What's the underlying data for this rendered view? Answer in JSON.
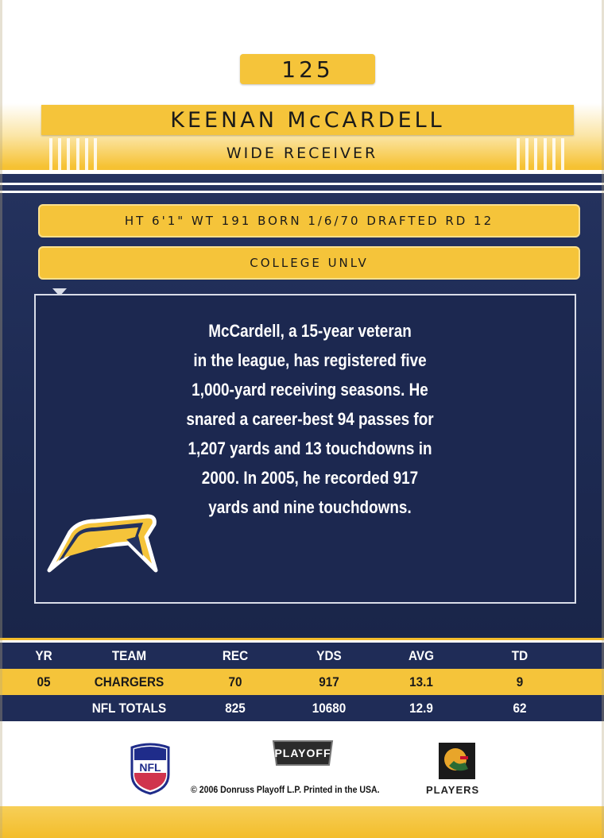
{
  "card": {
    "number": "125",
    "player_name": "KEENAN McCARDELL",
    "position": "WIDE RECEIVER",
    "vitals": "HT 6'1\" WT 191 BORN 1/6/70 DRAFTED RD 12",
    "college": "COLLEGE UNLV",
    "bio_lines": [
      "McCardell, a 15-year veteran",
      "in the league, has registered five",
      "1,000-yard receiving seasons. He",
      "snared a career-best 94 passes for",
      "1,207 yards and 13 touchdowns in",
      "2000. In 2005, he recorded 917",
      "yards and nine touchdowns."
    ]
  },
  "stats": {
    "headers": {
      "yr": "YR",
      "team": "TEAM",
      "rec": "REC",
      "yds": "YDS",
      "avg": "AVG",
      "td": "TD"
    },
    "season": {
      "yr": "05",
      "team": "CHARGERS",
      "rec": "70",
      "yds": "917",
      "avg": "13.1",
      "td": "9"
    },
    "totals": {
      "yr": "",
      "team": "NFL TOTALS",
      "rec": "825",
      "yds": "10680",
      "avg": "12.9",
      "td": "62"
    }
  },
  "footer": {
    "nfl_logo": "NFL",
    "playoff_logo": "PLAYOFF",
    "copyright": "© 2006 Donruss Playoff L.P. Printed in the USA.",
    "players_logo": "PLAYERS"
  },
  "colors": {
    "gold": "#f5c43a",
    "navy": "#1f2c57",
    "white": "#ffffff"
  },
  "icons": {
    "team_logo": "lightning-bolt-icon",
    "nfl": "nfl-shield-icon",
    "players": "players-helmet-icon"
  }
}
